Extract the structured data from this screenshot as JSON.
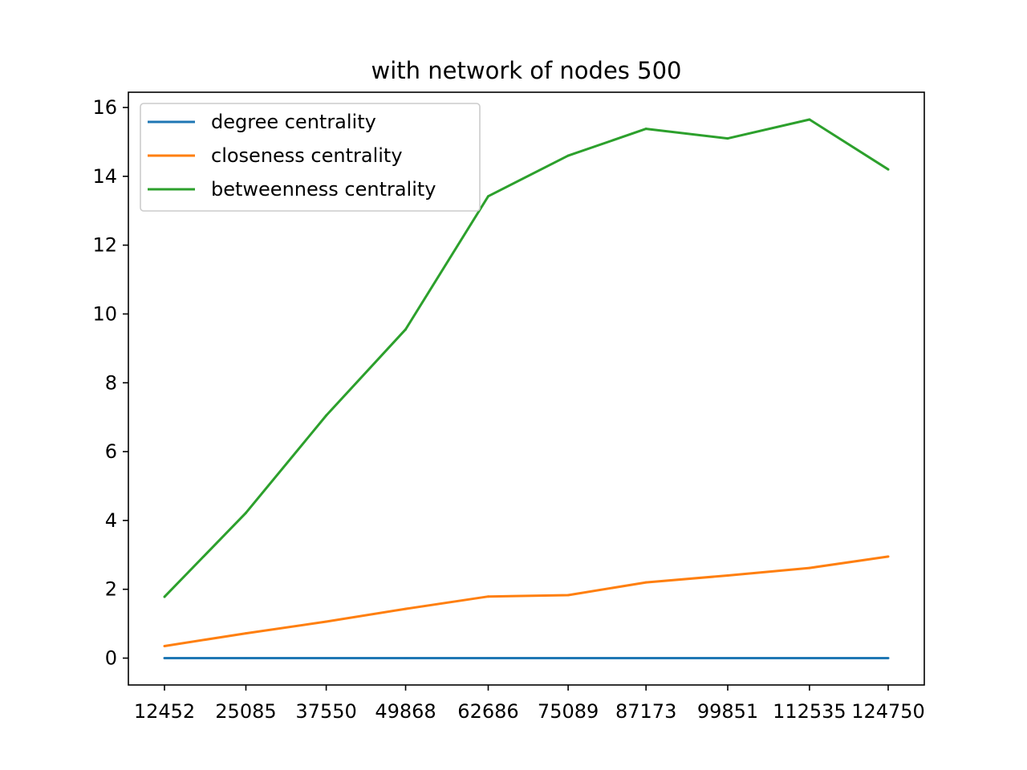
{
  "chart_data": {
    "type": "line",
    "title": "with network of nodes 500",
    "xlabel": "",
    "ylabel": "",
    "categories": [
      "12452",
      "25085",
      "37550",
      "49868",
      "62686",
      "75089",
      "87173",
      "99851",
      "112535",
      "124750"
    ],
    "x": [
      12452,
      25085,
      37550,
      49868,
      62686,
      75089,
      87173,
      99851,
      112535,
      124750
    ],
    "ylim": [
      -0.8,
      16.4
    ],
    "yticks": [
      "0",
      "2",
      "4",
      "6",
      "8",
      "10",
      "12",
      "14",
      "16"
    ],
    "grid": false,
    "legend_position": "upper-left",
    "series": [
      {
        "name": "degree centrality",
        "color": "#1f77b4",
        "values": [
          0.0,
          0.0,
          0.0,
          0.0,
          0.0,
          0.0,
          0.0,
          0.0,
          0.0,
          0.0
        ]
      },
      {
        "name": "closeness centrality",
        "color": "#ff7f0e",
        "values": [
          0.35,
          0.72,
          1.06,
          1.43,
          1.79,
          1.83,
          2.2,
          2.4,
          2.62,
          2.95
        ]
      },
      {
        "name": "betweenness centrality",
        "color": "#2ca02c",
        "values": [
          1.78,
          4.22,
          7.05,
          9.55,
          13.42,
          14.6,
          15.38,
          15.1,
          15.65,
          14.2
        ]
      }
    ]
  }
}
